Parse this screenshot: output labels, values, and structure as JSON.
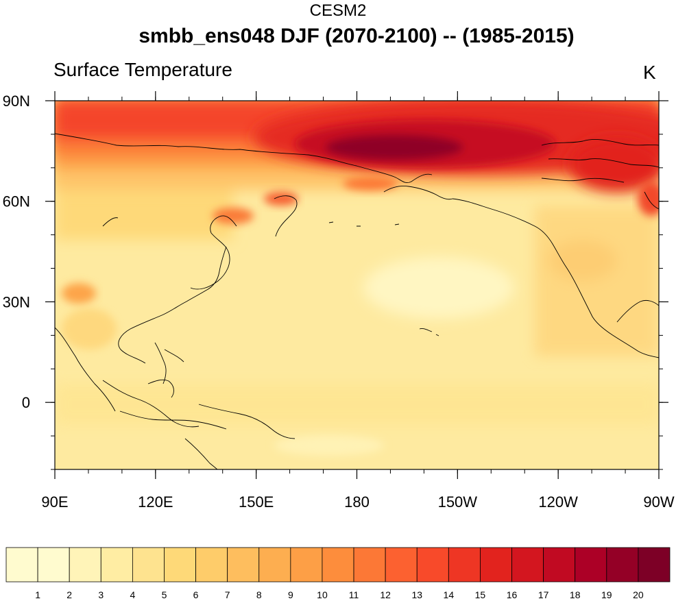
{
  "super_title": "CESM2",
  "main_title": "smbb_ens048 DJF (2070-2100) -- (1985-2015)",
  "left_string": "Surface Temperature",
  "right_string": "K",
  "map": {
    "projection": "cylindrical-equidistant",
    "lon_range": [
      90,
      270
    ],
    "lat_range": [
      -20,
      90
    ],
    "lat_ticks": [
      {
        "value": 90,
        "label": "90N"
      },
      {
        "value": 60,
        "label": "60N"
      },
      {
        "value": 30,
        "label": "30N"
      },
      {
        "value": 0,
        "label": "0"
      }
    ],
    "lon_ticks": [
      {
        "value": 90,
        "label": "90E"
      },
      {
        "value": 120,
        "label": "120E"
      },
      {
        "value": 150,
        "label": "150E"
      },
      {
        "value": 180,
        "label": "180"
      },
      {
        "value": 210,
        "label": "150W"
      },
      {
        "value": 240,
        "label": "120W"
      },
      {
        "value": 270,
        "label": "90W"
      }
    ]
  },
  "colorbar": {
    "levels": [
      "1",
      "2",
      "3",
      "4",
      "5",
      "6",
      "7",
      "8",
      "9",
      "10",
      "11",
      "12",
      "13",
      "14",
      "15",
      "16",
      "17",
      "18",
      "19",
      "20"
    ],
    "colors": [
      "#FFFBCF",
      "#FFF4B8",
      "#FFEDA3",
      "#FEE38F",
      "#FED978",
      "#FECC6A",
      "#FEBE5E",
      "#FDAE50",
      "#FD9F46",
      "#FD8D3C",
      "#FC7836",
      "#FC6130",
      "#F84A2A",
      "#EE3624",
      "#E2231E",
      "#D3161F",
      "#C10A22",
      "#AC0026",
      "#940026",
      "#7D0026"
    ]
  }
}
